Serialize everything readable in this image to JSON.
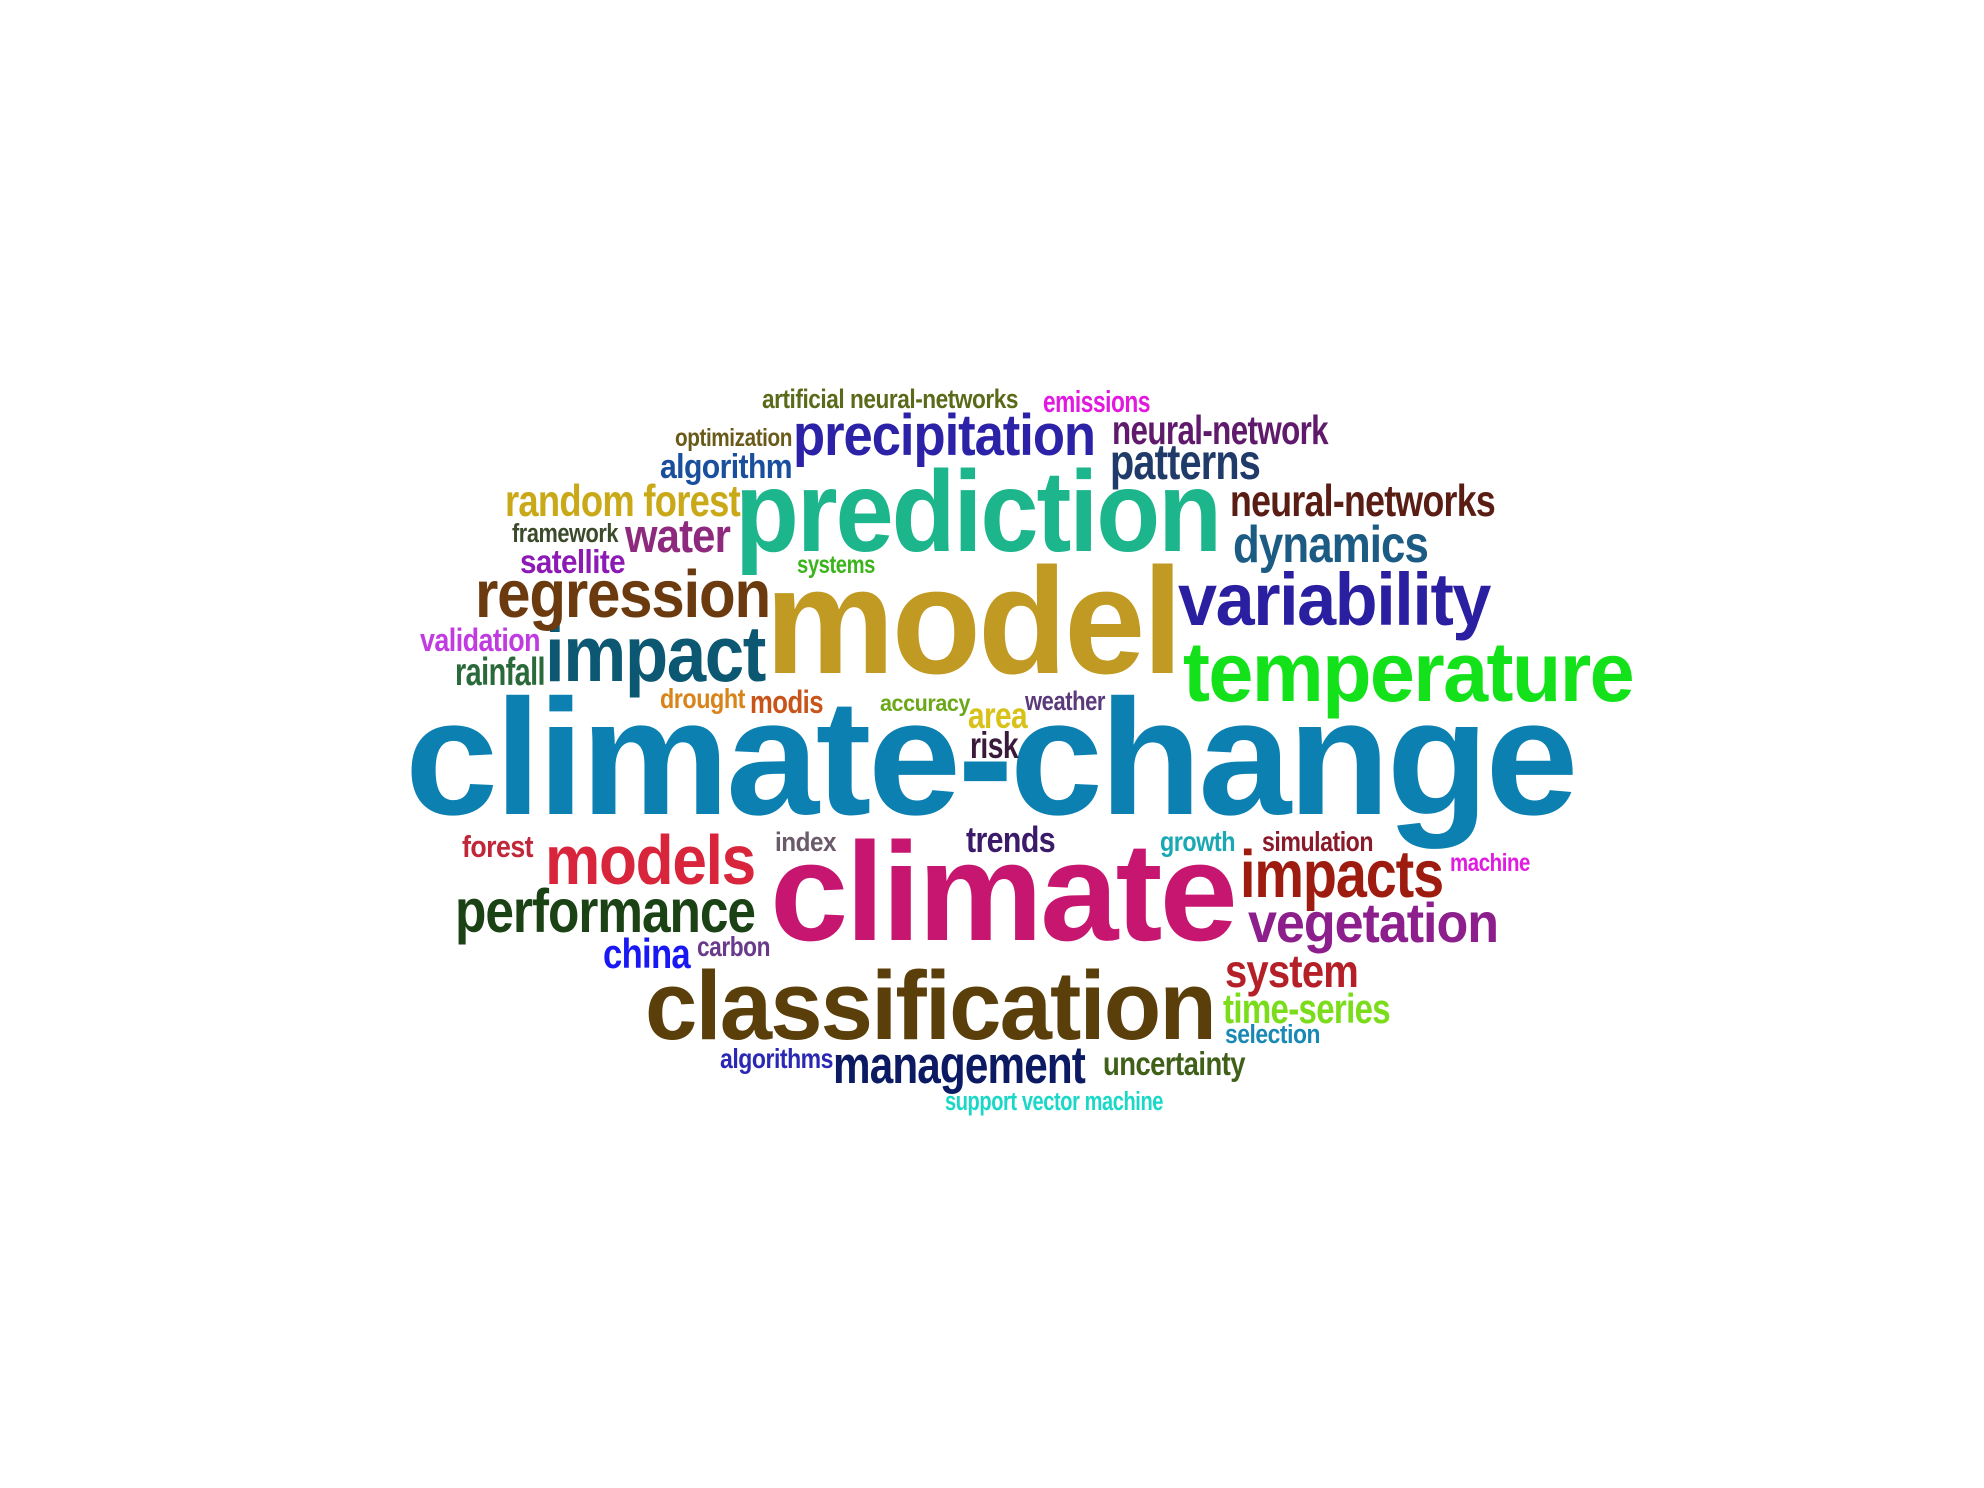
{
  "word_cloud": {
    "words": [
      {
        "text": "climate-change",
        "color": "#0c80b1"
      },
      {
        "text": "model",
        "color": "#c19a23"
      },
      {
        "text": "climate",
        "color": "#c71670"
      },
      {
        "text": "prediction",
        "color": "#1cb58c"
      },
      {
        "text": "classification",
        "color": "#5a3f0b"
      },
      {
        "text": "temperature",
        "color": "#13e21a"
      },
      {
        "text": "variability",
        "color": "#2b1fa1"
      },
      {
        "text": "impact",
        "color": "#0c5772"
      },
      {
        "text": "regression",
        "color": "#6b3a0f"
      },
      {
        "text": "precipitation",
        "color": "#2c22a8"
      },
      {
        "text": "models",
        "color": "#d8253c"
      },
      {
        "text": "performance",
        "color": "#1a4214"
      },
      {
        "text": "impacts",
        "color": "#9e1b10"
      },
      {
        "text": "vegetation",
        "color": "#8c1f8c"
      },
      {
        "text": "management",
        "color": "#0c1a63"
      },
      {
        "text": "neural-networks",
        "color": "#5a1d14"
      },
      {
        "text": "dynamics",
        "color": "#1c5c84"
      },
      {
        "text": "patterns",
        "color": "#203a6a"
      },
      {
        "text": "random forest",
        "color": "#c9a918"
      },
      {
        "text": "water",
        "color": "#8e2a7e"
      },
      {
        "text": "system",
        "color": "#b41f28"
      },
      {
        "text": "neural-network",
        "color": "#601a6b"
      },
      {
        "text": "time-series",
        "color": "#7bdc1c"
      },
      {
        "text": "algorithm",
        "color": "#1a4f9e"
      },
      {
        "text": "china",
        "color": "#1a18f2"
      },
      {
        "text": "rainfall",
        "color": "#2a6a3a"
      },
      {
        "text": "validation",
        "color": "#c13ce0"
      },
      {
        "text": "satellite",
        "color": "#8c1ab4"
      },
      {
        "text": "trends",
        "color": "#3c1a6a"
      },
      {
        "text": "uncertainty",
        "color": "#40601a"
      },
      {
        "text": "area",
        "color": "#d8c21a"
      },
      {
        "text": "risk",
        "color": "#3a1a3a"
      },
      {
        "text": "artificial neural-networks",
        "color": "#5a6a1a"
      },
      {
        "text": "emissions",
        "color": "#e21ae0"
      },
      {
        "text": "optimization",
        "color": "#6a5a1a"
      },
      {
        "text": "framework",
        "color": "#3a4a2a"
      },
      {
        "text": "drought",
        "color": "#d8841a"
      },
      {
        "text": "modis",
        "color": "#c8541a"
      },
      {
        "text": "accuracy",
        "color": "#6aa81a"
      },
      {
        "text": "weather",
        "color": "#5a3a7a"
      },
      {
        "text": "index",
        "color": "#6a5a6a"
      },
      {
        "text": "forest",
        "color": "#c0283a"
      },
      {
        "text": "growth",
        "color": "#1aa8b4"
      },
      {
        "text": "simulation",
        "color": "#8a1a2a"
      },
      {
        "text": "machine",
        "color": "#e01ae0"
      },
      {
        "text": "carbon",
        "color": "#6a3a8a"
      },
      {
        "text": "algorithms",
        "color": "#2a28b4"
      },
      {
        "text": "selection",
        "color": "#1a88b4"
      },
      {
        "text": "systems",
        "color": "#3ab41a"
      },
      {
        "text": "support vector machine",
        "color": "#1ad8c8"
      }
    ]
  }
}
